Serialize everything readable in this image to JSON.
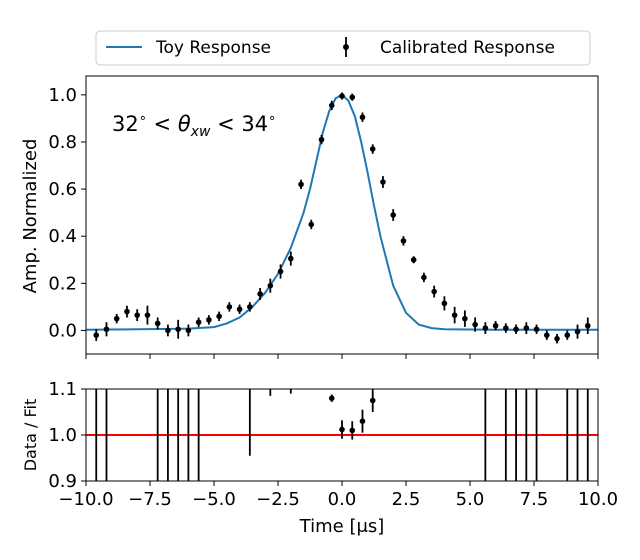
{
  "chart_data": [
    {
      "type": "line",
      "ylabel": "Amp. Normalized",
      "annotation": "32° < θxw < 34°",
      "xlim": [
        -10,
        10
      ],
      "ylim": [
        -0.1,
        1.08
      ],
      "yticks": [
        "0.0",
        "0.2",
        "0.4",
        "0.6",
        "0.8",
        "1.0"
      ],
      "legend_position": "top, outside plot",
      "series": [
        {
          "name": "Toy Response",
          "kind": "line",
          "color": "#1f77b4",
          "x": [
            -10,
            -9,
            -8,
            -7,
            -6,
            -5,
            -4.5,
            -4,
            -3.5,
            -3,
            -2.5,
            -2,
            -1.5,
            -1.25,
            -1,
            -0.75,
            -0.5,
            -0.25,
            0,
            0.25,
            0.5,
            0.75,
            1,
            1.25,
            1.5,
            2,
            2.5,
            3,
            3.5,
            4,
            5,
            6,
            7,
            8,
            9,
            10
          ],
          "y": [
            0.003,
            0.004,
            0.005,
            0.006,
            0.008,
            0.014,
            0.03,
            0.055,
            0.1,
            0.16,
            0.24,
            0.35,
            0.5,
            0.6,
            0.72,
            0.84,
            0.93,
            0.985,
            1.0,
            0.975,
            0.91,
            0.8,
            0.67,
            0.53,
            0.4,
            0.19,
            0.075,
            0.025,
            0.01,
            0.005,
            0.004,
            0.003,
            0.003,
            0.003,
            0.003,
            0.003
          ]
        },
        {
          "name": "Calibrated Response",
          "kind": "errorbar",
          "color": "#000000",
          "x": [
            -9.6,
            -9.2,
            -8.8,
            -8.4,
            -8.0,
            -7.6,
            -7.2,
            -6.8,
            -6.4,
            -6.0,
            -5.6,
            -5.2,
            -4.8,
            -4.4,
            -4.0,
            -3.6,
            -3.2,
            -2.8,
            -2.4,
            -2.0,
            -1.6,
            -1.2,
            -0.8,
            -0.4,
            0.0,
            0.4,
            0.8,
            1.2,
            1.6,
            2.0,
            2.4,
            2.8,
            3.2,
            3.6,
            4.0,
            4.4,
            4.8,
            5.2,
            5.6,
            6.0,
            6.4,
            6.8,
            7.2,
            7.6,
            8.0,
            8.4,
            8.8,
            9.2,
            9.6
          ],
          "y": [
            -0.02,
            0.005,
            0.05,
            0.08,
            0.065,
            0.065,
            0.03,
            0.0,
            0.005,
            0.0,
            0.035,
            0.045,
            0.06,
            0.1,
            0.09,
            0.1,
            0.155,
            0.19,
            0.25,
            0.305,
            0.62,
            0.45,
            0.81,
            0.955,
            0.995,
            0.99,
            0.905,
            0.77,
            0.63,
            0.49,
            0.38,
            0.3,
            0.225,
            0.165,
            0.115,
            0.065,
            0.05,
            0.025,
            0.01,
            0.02,
            0.01,
            0.005,
            0.01,
            0.005,
            -0.02,
            -0.035,
            -0.02,
            -0.005,
            0.02
          ],
          "err": [
            0.025,
            0.03,
            0.02,
            0.025,
            0.025,
            0.04,
            0.025,
            0.025,
            0.04,
            0.025,
            0.02,
            0.02,
            0.02,
            0.02,
            0.02,
            0.02,
            0.025,
            0.03,
            0.03,
            0.03,
            0.02,
            0.02,
            0.02,
            0.02,
            0.015,
            0.015,
            0.02,
            0.02,
            0.025,
            0.025,
            0.02,
            0.015,
            0.02,
            0.025,
            0.03,
            0.035,
            0.035,
            0.03,
            0.025,
            0.02,
            0.02,
            0.02,
            0.025,
            0.02,
            0.02,
            0.02,
            0.02,
            0.03,
            0.035
          ]
        }
      ]
    },
    {
      "type": "scatter",
      "xlabel": "Time [μs]",
      "ylabel": "Data / Fit",
      "xlim": [
        -10,
        10
      ],
      "ylim": [
        0.9,
        1.1
      ],
      "xticks": [
        "−10.0",
        "−7.5",
        "−5.0",
        "−2.5",
        "0.0",
        "2.5",
        "5.0",
        "7.5",
        "10.0"
      ],
      "yticks": [
        "0.9",
        "1.0",
        "1.1"
      ],
      "reference_line": {
        "y": 1.0,
        "color": "#ff0000"
      },
      "points": {
        "x": [
          -0.4,
          0.0,
          0.4,
          0.8,
          1.2
        ],
        "y": [
          1.08,
          1.012,
          1.01,
          1.03,
          1.075
        ],
        "err": [
          0.008,
          0.02,
          0.02,
          0.025,
          0.025
        ]
      },
      "vertical_bars": {
        "x": [
          -9.6,
          -9.2,
          -7.2,
          -6.8,
          -6.4,
          -6.0,
          -5.6,
          -3.6,
          5.6,
          6.4,
          6.8,
          7.2,
          7.6,
          8.8,
          9.2,
          9.6
        ],
        "y_low": [
          0.9,
          0.9,
          0.9,
          0.9,
          0.9,
          0.9,
          0.9,
          0.955,
          0.9,
          0.9,
          0.9,
          0.9,
          0.9,
          0.9,
          0.9,
          0.9
        ],
        "y_high": [
          1.1,
          1.1,
          1.1,
          1.1,
          1.1,
          1.1,
          1.1,
          1.1,
          1.1,
          1.1,
          1.1,
          1.1,
          1.1,
          1.1,
          1.1,
          1.1
        ]
      },
      "short_top_bars": {
        "x": [
          -2.8,
          -2.0
        ],
        "y_low": [
          1.085,
          1.09
        ],
        "y_high": [
          1.1,
          1.1
        ]
      }
    }
  ]
}
